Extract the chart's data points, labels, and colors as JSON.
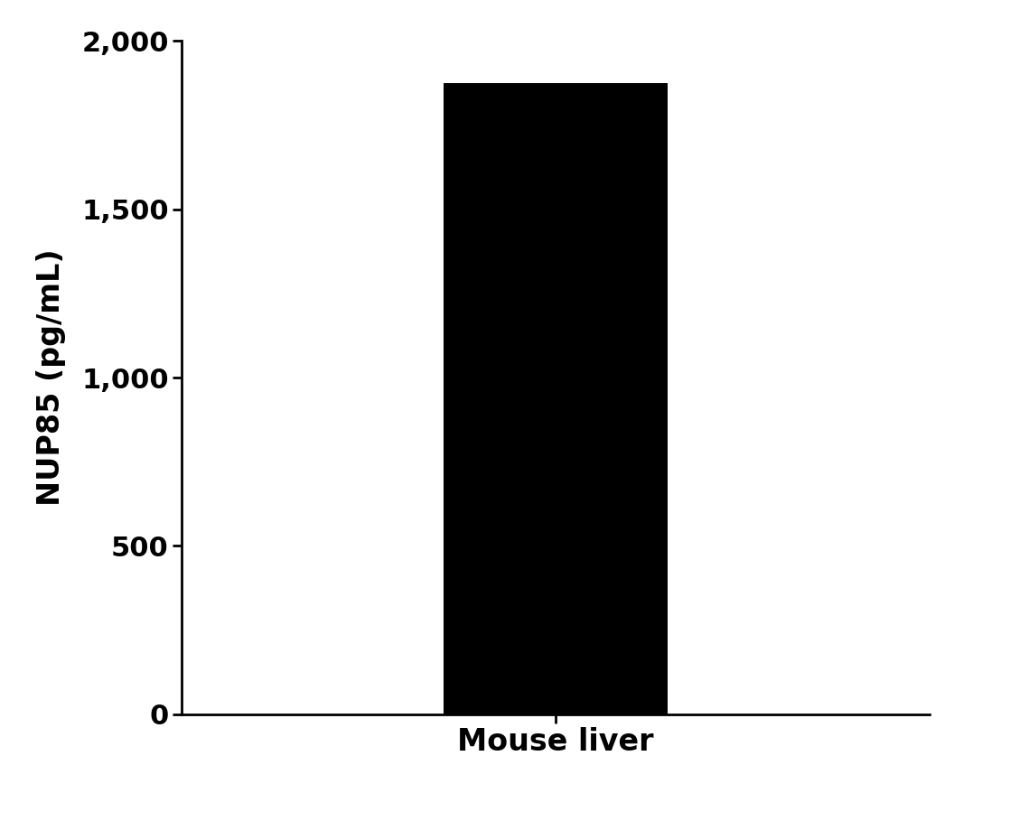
{
  "categories": [
    "Mouse liver"
  ],
  "values": [
    1874.5
  ],
  "bar_color": "#000000",
  "ylabel": "NUP85 (pg/mL)",
  "ylim": [
    0,
    2000
  ],
  "yticks": [
    0,
    500,
    1000,
    1500,
    2000
  ],
  "bar_width": 0.6,
  "background_color": "#ffffff",
  "ylabel_fontsize": 24,
  "tick_fontsize": 22,
  "xlabel_fontsize": 24,
  "spine_linewidth": 2.0
}
